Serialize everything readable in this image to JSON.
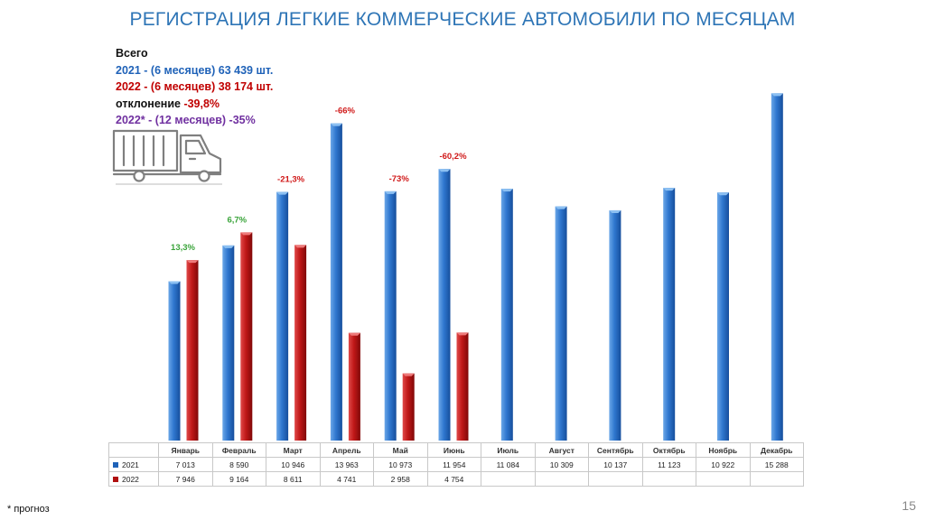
{
  "title": "РЕГИСТРАЦИЯ ЛЕГКИЕ КОММЕРЧЕСКИЕ АВТОМОБИЛИ ПО МЕСЯЦАМ",
  "summary": {
    "heading": "Всего",
    "line_2021": "2021 - (6 месяцев)  63 439 шт.",
    "line_2022": "2022 - (6 месяцев)  38 174 шт.",
    "deviation_label": "отклонение ",
    "deviation_value": "-39,8%",
    "forecast_line": "2022* - (12 месяцев) -35%"
  },
  "footnote": "* прогноз",
  "page_number": "15",
  "colors": {
    "series_2021": "#1f62b8",
    "series_2022": "#b01010",
    "positive_change": "#3aa43a",
    "negative_change": "#d01818",
    "title": "#2e75b6"
  },
  "icons": [
    "truck-icon"
  ],
  "chart_data": {
    "type": "bar",
    "categories": [
      "Январь",
      "Февраль",
      "Март",
      "Апрель",
      "Май",
      "Июнь",
      "Июль",
      "Август",
      "Сентябрь",
      "Октябрь",
      "Ноябрь",
      "Декабрь"
    ],
    "series": [
      {
        "name": "2021",
        "values": [
          7013,
          8590,
          10946,
          13963,
          10973,
          11954,
          11084,
          10309,
          10137,
          11123,
          10922,
          15288
        ],
        "labels": [
          "7 013",
          "8 590",
          "10 946",
          "13 963",
          "10 973",
          "11 954",
          "11 084",
          "10 309",
          "10 137",
          "11 123",
          "10 922",
          "15 288"
        ]
      },
      {
        "name": "2022",
        "values": [
          7946,
          9164,
          8611,
          4741,
          2958,
          4754,
          null,
          null,
          null,
          null,
          null,
          null
        ],
        "labels": [
          "7 946",
          "9 164",
          "8 611",
          "4 741",
          "2 958",
          "4 754",
          "",
          "",
          "",
          "",
          "",
          ""
        ]
      }
    ],
    "changes": [
      "13,3%",
      "6,7%",
      "-21,3%",
      "-66%",
      "-73%",
      "-60,2%"
    ],
    "ylim": [
      0,
      15500
    ],
    "grid": false,
    "legend": "data-table"
  }
}
